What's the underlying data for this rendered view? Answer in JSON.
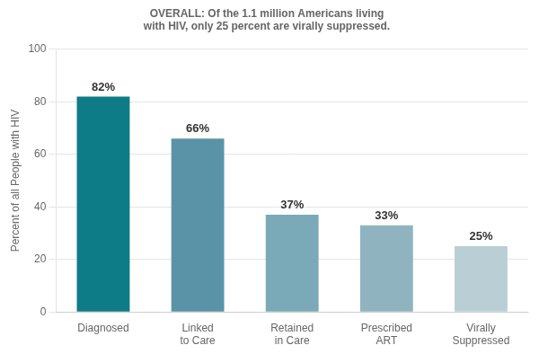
{
  "chart_data": {
    "type": "bar",
    "title": "OVERALL: Of the 1.1 million Americans living with HIV, only 25 percent are virally suppressed.",
    "ylabel": "Percent of all People with HIV",
    "categories": [
      "Diagnosed",
      "Linked\nto Care",
      "Retained\nin Care",
      "Prescribed\nART",
      "Virally\nSuppressed"
    ],
    "values": [
      82,
      66,
      37,
      33,
      25
    ],
    "value_labels": [
      "82%",
      "66%",
      "37%",
      "33%",
      "25%"
    ],
    "data_labels": true,
    "colors": [
      "#0e7c86",
      "#5a93a8",
      "#7aaab8",
      "#90b4bf",
      "#baced6"
    ],
    "ylim": [
      0,
      100
    ],
    "yticks": [
      0,
      20,
      40,
      60,
      80,
      100
    ],
    "grid": true
  }
}
